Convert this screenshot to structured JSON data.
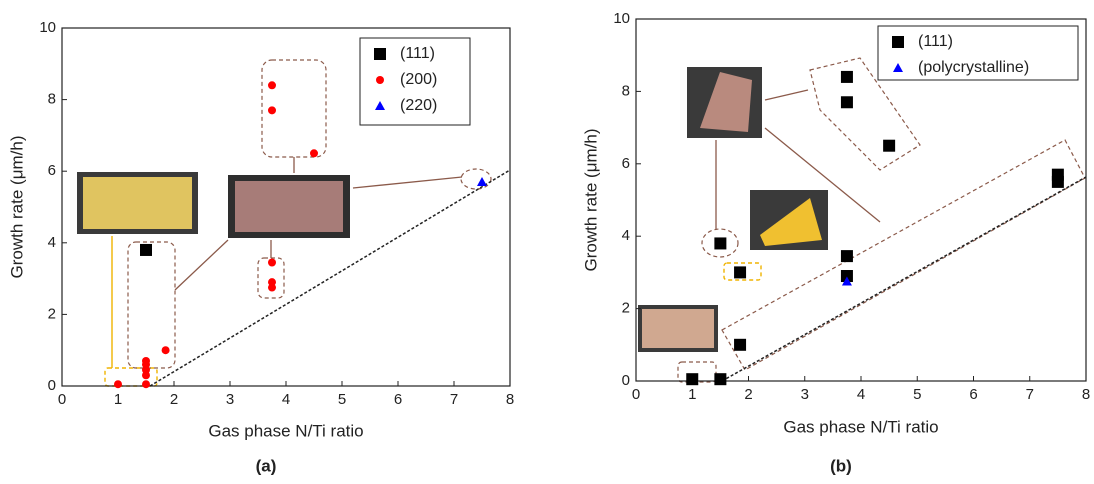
{
  "chart_data": [
    {
      "type": "scatter",
      "caption": "(a)",
      "x_label": "Gas phase N/Ti ratio",
      "y_label": "Growth rate (μm/h)",
      "xlim": [
        0,
        8
      ],
      "xticks": [
        0,
        1,
        2,
        3,
        4,
        5,
        6,
        7,
        8
      ],
      "ylim": [
        0,
        10
      ],
      "yticks": [
        0,
        2,
        4,
        6,
        8,
        10
      ],
      "series": [
        {
          "name": "(111)",
          "color": "#000000",
          "marker": "square",
          "x": [
            1.5
          ],
          "values": [
            3.8
          ]
        },
        {
          "name": "(200)",
          "color": "#ff0000",
          "marker": "circle",
          "x": [
            1.0,
            1.5,
            1.5,
            1.5,
            1.5,
            1.5,
            1.85,
            3.75,
            3.75,
            4.5,
            3.75,
            3.75,
            3.75
          ],
          "values": [
            0.05,
            0.05,
            0.3,
            0.45,
            0.6,
            0.7,
            1.0,
            8.4,
            7.7,
            6.5,
            3.45,
            2.9,
            2.75
          ]
        },
        {
          "name": "(220)",
          "color": "#0000ff",
          "marker": "triangle",
          "x": [
            7.5
          ],
          "values": [
            5.7
          ]
        }
      ]
    },
    {
      "type": "scatter",
      "caption": "(b)",
      "x_label": "Gas phase N/Ti ratio",
      "y_label": "Growth rate (μm/h)",
      "xlim": [
        0,
        8
      ],
      "xticks": [
        0,
        1,
        2,
        3,
        4,
        5,
        6,
        7,
        8
      ],
      "ylim": [
        0,
        10
      ],
      "yticks": [
        0,
        2,
        4,
        6,
        8,
        10
      ],
      "series": [
        {
          "name": "(111)",
          "color": "#000000",
          "marker": "square",
          "x": [
            1.0,
            1.5,
            1.85,
            1.85,
            1.5,
            3.75,
            3.75,
            3.75,
            3.75,
            4.5,
            7.5,
            7.5
          ],
          "values": [
            0.05,
            0.05,
            1.0,
            3.0,
            3.8,
            3.45,
            2.9,
            8.4,
            7.7,
            6.5,
            5.7,
            5.5
          ]
        },
        {
          "name": "(polycrystalline)",
          "color": "#0000ff",
          "marker": "triangle",
          "x": [
            3.75
          ],
          "values": [
            2.75
          ]
        }
      ]
    }
  ]
}
